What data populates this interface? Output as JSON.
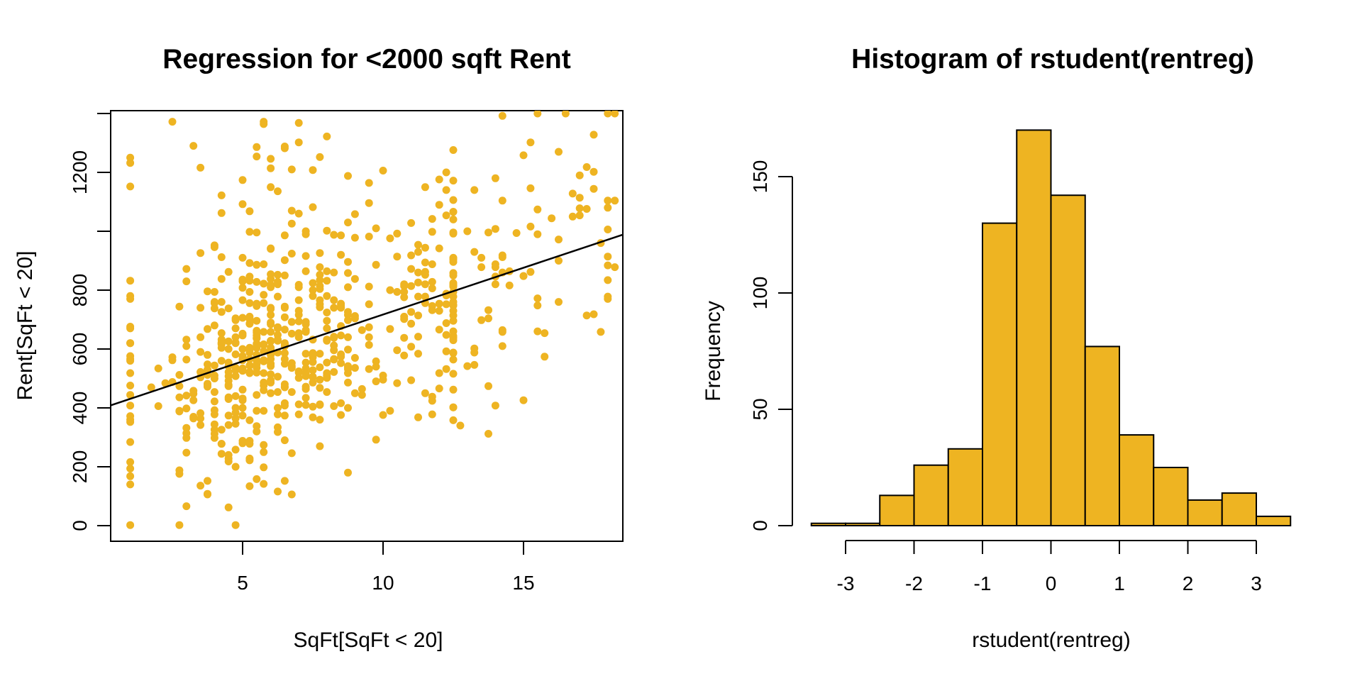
{
  "chart_data": [
    {
      "type": "scatter",
      "title": "Regression for <2000 sqft Rent",
      "xlabel": "SqFt[SqFt < 20]",
      "ylabel": "Rent[SqFt < 20]",
      "x_ticks": [
        5,
        10,
        15
      ],
      "y_ticks": [
        0,
        200,
        400,
        600,
        800,
        1000,
        1200,
        1400
      ],
      "y_tick_labels": [
        "0",
        "200",
        "400",
        "600",
        "800",
        "",
        "1200",
        ""
      ],
      "xlim": [
        0.3,
        18.54
      ],
      "ylim": [
        -53,
        1412
      ],
      "grid": false,
      "point_color": "#EEB422",
      "line_color": "#000000",
      "n_points": 686,
      "regression_line": {
        "intercept": 399,
        "slope": 31.8
      },
      "point_generator": {
        "seed": 905311,
        "count": 686,
        "x_quantum": 0.25,
        "y_quantum": 2,
        "col1_prob": 0.035,
        "col1_x": 1.0,
        "core_prob": 0.795,
        "core_log_mean": 1.8563,
        "core_log_sd": 0.4,
        "core_min": 1.75,
        "core_max": 12.5,
        "mid_prob": 0.1,
        "mid_min": 10.5,
        "mid_max": 14.5,
        "far_min": 14.75,
        "far_max": 18.3,
        "resid_sd": 205,
        "high_prob": 0.05,
        "high_min": 1020,
        "high_range": 380,
        "y_min": 2,
        "y_max": 1400
      }
    },
    {
      "type": "bar",
      "title": "Histogram of rstudent(rentreg)",
      "xlabel": "rstudent(rentreg)",
      "ylabel": "Frequency",
      "bin_start": -3.5,
      "bin_width": 0.5,
      "categories": [
        "[-3.5,-3]",
        "(-3,-2.5]",
        "(-2.5,-2]",
        "(-2,-1.5]",
        "(-1.5,-1]",
        "(-1,-0.5]",
        "(-0.5,0]",
        "(0,0.5]",
        "(0.5,1]",
        "(1,1.5]",
        "(1.5,2]",
        "(2,2.5]",
        "(2.5,3]",
        "(3,3.5]"
      ],
      "values": [
        1,
        1,
        13,
        26,
        33,
        130,
        170,
        142,
        77,
        39,
        25,
        11,
        14,
        4
      ],
      "x_ticks": [
        -3,
        -2,
        -1,
        0,
        1,
        2,
        3
      ],
      "y_ticks": [
        0,
        50,
        100,
        150
      ],
      "xlim": [
        -3.5,
        3.5
      ],
      "ylim": [
        0,
        170
      ],
      "grid": false,
      "bar_fill": "#EEB422",
      "bar_border": "#000000"
    }
  ]
}
